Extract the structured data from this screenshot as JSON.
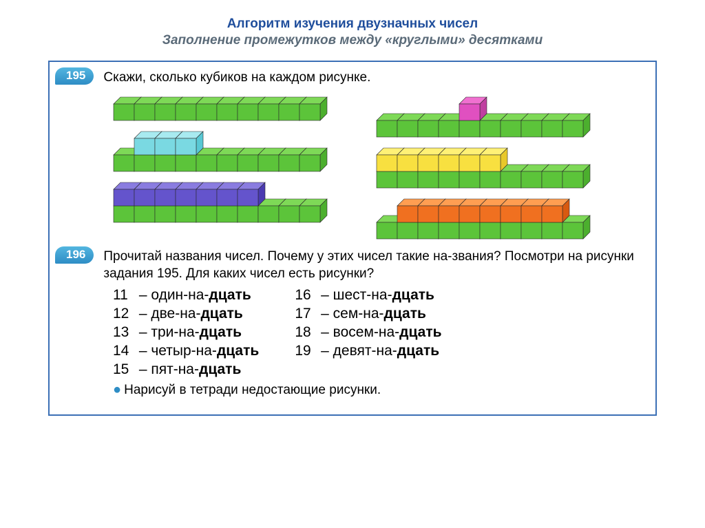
{
  "colors": {
    "title": "#1f4e9c",
    "subtitle": "#5a6a78",
    "frame_border": "#3b6fb5",
    "badge_bg": "#3ba0d4",
    "cube_green_top": "#7ed957",
    "cube_green_side": "#4caf2e",
    "cube_green_front": "#5cc43a",
    "cube_cyan_top": "#a8eaf0",
    "cube_cyan_side": "#58c8d4",
    "cube_cyan_front": "#7ad9e2",
    "cube_purple_top": "#8a7ce0",
    "cube_purple_side": "#4a3ab0",
    "cube_purple_front": "#6454cc",
    "cube_magenta_top": "#f070d0",
    "cube_magenta_side": "#c040a0",
    "cube_magenta_front": "#e050c0",
    "cube_yellow_top": "#fff176",
    "cube_yellow_side": "#e8c82a",
    "cube_yellow_front": "#f8e040",
    "cube_orange_top": "#ff9e52",
    "cube_orange_side": "#d85a10",
    "cube_orange_front": "#f07020"
  },
  "title": "Алгоритм изучения двузначных чисел",
  "subtitle": "Заполнение промежутков между «круглыми» десятками",
  "ex195": {
    "number": "195",
    "prompt": "Скажи, сколько кубиков на каждом рисунке.",
    "rows_left": [
      {
        "base": {
          "color": "green",
          "count": 10
        },
        "extras": []
      },
      {
        "base": {
          "color": "green",
          "count": 10
        },
        "extras": [
          {
            "color": "cyan",
            "start": 1,
            "count": 3
          }
        ]
      },
      {
        "base": {
          "color": "green",
          "count": 10
        },
        "extras": [
          {
            "color": "purple",
            "start": 0,
            "count": 7
          }
        ]
      }
    ],
    "rows_right": [
      {
        "base": {
          "color": "green",
          "count": 10
        },
        "extras": [
          {
            "color": "magenta",
            "start": 4,
            "count": 1
          }
        ]
      },
      {
        "base": {
          "color": "green",
          "count": 10
        },
        "extras": [
          {
            "color": "yellow",
            "start": 0,
            "count": 6
          }
        ]
      },
      {
        "base": {
          "color": "green",
          "count": 10
        },
        "extras": [
          {
            "color": "orange",
            "start": 1,
            "count": 8
          }
        ]
      }
    ]
  },
  "ex196": {
    "number": "196",
    "prompt": "Прочитай названия чисел. Почему у этих чисел такие на-звания? Посмотри на рисунки задания 195. Для каких чисел есть рисунки?",
    "col1": [
      {
        "num": "11",
        "pre": "один-на-",
        "bold": "дцать"
      },
      {
        "num": "12",
        "pre": "две-на-",
        "bold": "дцать"
      },
      {
        "num": "13",
        "pre": "три-на-",
        "bold": "дцать"
      },
      {
        "num": "14",
        "pre": "четыр-на-",
        "bold": "дцать"
      },
      {
        "num": "15",
        "pre": "пят-на-",
        "bold": "дцать"
      }
    ],
    "col2": [
      {
        "num": "16",
        "pre": "шест-на-",
        "bold": "дцать"
      },
      {
        "num": "17",
        "pre": "сем-на-",
        "bold": "дцать"
      },
      {
        "num": "18",
        "pre": "восем-на-",
        "bold": "дцать"
      },
      {
        "num": "19",
        "pre": "девят-на-",
        "bold": "дцать"
      }
    ],
    "footer": "Нарисуй в тетради недостающие рисунки."
  }
}
